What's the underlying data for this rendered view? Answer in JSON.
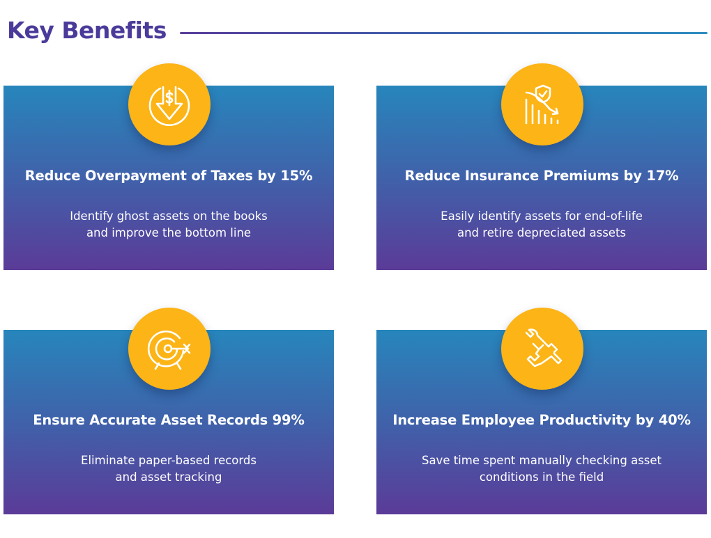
{
  "header": {
    "title": "Key Benefits"
  },
  "colors": {
    "accent": "#fcb416",
    "title": "#4b3a9a",
    "card_top": "#2786bc",
    "card_bottom": "#5b3b98"
  },
  "benefits": [
    {
      "icon": "dollar-down-arrow-icon",
      "title": "Reduce Overpayment of Taxes by 15%",
      "desc_line1": "Identify ghost assets on the books",
      "desc_line2": "and improve the bottom line"
    },
    {
      "icon": "shield-declining-chart-icon",
      "title": "Reduce Insurance Premiums by 17%",
      "desc_line1": "Easily identify assets for end-of-life",
      "desc_line2": "and retire depreciated assets"
    },
    {
      "icon": "target-arrow-icon",
      "title": "Ensure Accurate Asset Records 99%",
      "desc_line1": "Eliminate paper-based records",
      "desc_line2": "and asset tracking"
    },
    {
      "icon": "hand-wrench-icon",
      "title": "Increase Employee Productivity by 40%",
      "desc_line1": "Save time spent manually checking asset",
      "desc_line2": "conditions in the field"
    }
  ]
}
